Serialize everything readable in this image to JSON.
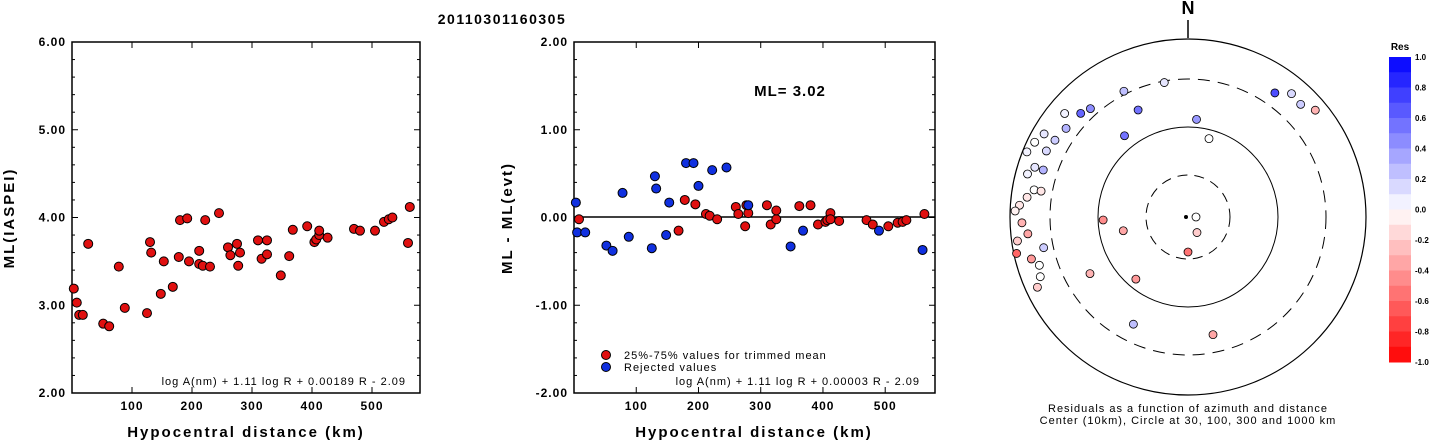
{
  "title": "20110301160305",
  "chart_data": [
    {
      "type": "scatter",
      "xlabel": "Hypocentral distance (km)",
      "ylabel": "ML(IASPEI)",
      "xlim": [
        0,
        580
      ],
      "ylim": [
        2.0,
        6.0
      ],
      "xticks": [
        "100",
        "200",
        "300",
        "400",
        "500"
      ],
      "yticks": [
        "2.00",
        "3.00",
        "4.00",
        "5.00",
        "6.00"
      ],
      "formula": "log A(nm) + 1.11 log R + 0.00189 R - 2.09",
      "marker_color": "#e01010",
      "points": [
        [
          3,
          3.19
        ],
        [
          8,
          3.03
        ],
        [
          12,
          2.89
        ],
        [
          18,
          2.89
        ],
        [
          27,
          3.7
        ],
        [
          52,
          2.79
        ],
        [
          62,
          2.76
        ],
        [
          78,
          3.44
        ],
        [
          88,
          2.97
        ],
        [
          125,
          2.91
        ],
        [
          130,
          3.72
        ],
        [
          132,
          3.6
        ],
        [
          148,
          3.13
        ],
        [
          153,
          3.5
        ],
        [
          168,
          3.21
        ],
        [
          180,
          3.97
        ],
        [
          178,
          3.55
        ],
        [
          192,
          3.99
        ],
        [
          195,
          3.5
        ],
        [
          212,
          3.62
        ],
        [
          212,
          3.47
        ],
        [
          218,
          3.45
        ],
        [
          222,
          3.97
        ],
        [
          230,
          3.44
        ],
        [
          245,
          4.05
        ],
        [
          260,
          3.66
        ],
        [
          264,
          3.57
        ],
        [
          275,
          3.7
        ],
        [
          277,
          3.45
        ],
        [
          280,
          3.6
        ],
        [
          310,
          3.74
        ],
        [
          316,
          3.53
        ],
        [
          325,
          3.74
        ],
        [
          325,
          3.58
        ],
        [
          348,
          3.34
        ],
        [
          362,
          3.56
        ],
        [
          368,
          3.86
        ],
        [
          392,
          3.9
        ],
        [
          404,
          3.72
        ],
        [
          407,
          3.75
        ],
        [
          412,
          3.8
        ],
        [
          412,
          3.85
        ],
        [
          426,
          3.77
        ],
        [
          470,
          3.87
        ],
        [
          480,
          3.85
        ],
        [
          505,
          3.85
        ],
        [
          520,
          3.95
        ],
        [
          528,
          3.98
        ],
        [
          534,
          4.0
        ],
        [
          560,
          3.71
        ],
        [
          563,
          4.12
        ]
      ]
    },
    {
      "type": "scatter",
      "xlabel": "Hypocentral distance (km)",
      "ylabel": "ML - ML(evt)",
      "xlim": [
        0,
        580
      ],
      "ylim": [
        -2.0,
        2.0
      ],
      "xticks": [
        "100",
        "200",
        "300",
        "400",
        "500"
      ],
      "yticks": [
        "-2.00",
        "-1.00",
        "0.00",
        "1.00",
        "2.00"
      ],
      "annotation": "ML= 3.02",
      "formula": "log A(nm) + 1.11 log R + 0.00003 R - 2.09",
      "reference_line": 0.0,
      "legend": [
        {
          "label": "25%-75% values for trimmed mean",
          "color": "#e01010"
        },
        {
          "label": "Rejected values",
          "color": "#1030e0"
        }
      ],
      "legend_position": "bottom-left",
      "series": [
        {
          "name": "25%-75% values for trimmed mean",
          "color": "#e01010",
          "points": [
            [
              8,
              -0.02
            ],
            [
              168,
              -0.15
            ],
            [
              178,
              0.2
            ],
            [
              195,
              0.15
            ],
            [
              212,
              0.04
            ],
            [
              218,
              0.02
            ],
            [
              230,
              -0.02
            ],
            [
              260,
              0.12
            ],
            [
              264,
              0.04
            ],
            [
              275,
              -0.1
            ],
            [
              277,
              0.14
            ],
            [
              280,
              0.05
            ],
            [
              310,
              0.14
            ],
            [
              316,
              -0.08
            ],
            [
              325,
              -0.02
            ],
            [
              325,
              0.08
            ],
            [
              362,
              0.13
            ],
            [
              380,
              0.14
            ],
            [
              392,
              -0.08
            ],
            [
              404,
              -0.05
            ],
            [
              407,
              -0.03
            ],
            [
              412,
              0.05
            ],
            [
              412,
              -0.02
            ],
            [
              426,
              -0.04
            ],
            [
              470,
              -0.03
            ],
            [
              480,
              -0.08
            ],
            [
              505,
              -0.1
            ],
            [
              520,
              -0.06
            ],
            [
              528,
              -0.05
            ],
            [
              534,
              -0.03
            ],
            [
              563,
              0.04
            ]
          ]
        },
        {
          "name": "Rejected values",
          "color": "#1030e0",
          "points": [
            [
              3,
              0.17
            ],
            [
              5,
              -0.17
            ],
            [
              18,
              -0.17
            ],
            [
              52,
              -0.32
            ],
            [
              62,
              -0.38
            ],
            [
              78,
              0.28
            ],
            [
              88,
              -0.22
            ],
            [
              125,
              -0.35
            ],
            [
              130,
              0.47
            ],
            [
              132,
              0.33
            ],
            [
              148,
              -0.2
            ],
            [
              153,
              0.17
            ],
            [
              180,
              0.62
            ],
            [
              192,
              0.62
            ],
            [
              200,
              0.36
            ],
            [
              222,
              0.54
            ],
            [
              245,
              0.57
            ],
            [
              280,
              0.14
            ],
            [
              348,
              -0.33
            ],
            [
              368,
              -0.15
            ],
            [
              490,
              -0.15
            ],
            [
              560,
              -0.37
            ]
          ]
        }
      ]
    },
    {
      "type": "scatter",
      "subtype": "polar-residual-map",
      "north_label": "N",
      "caption": [
        "Residuals as a function of azimuth and distance",
        "Center (10km), Circle at 30, 100, 300 and 1000 km"
      ],
      "colorbar_title": "Res",
      "colorbar_ticks": [
        "1.0",
        "0.8",
        "0.6",
        "0.4",
        "0.2",
        "0.0",
        "-0.2",
        "-0.4",
        "-0.6",
        "-0.8",
        "-1.0"
      ],
      "colorbar_range": [
        -1.0,
        1.0
      ],
      "positive_color": "#0000ff",
      "negative_color": "#ff0000",
      "stations": [
        {
          "azimuth": 90,
          "distance": 10,
          "residual": 0.0
        },
        {
          "azimuth": 150,
          "distance": 16,
          "residual": -0.2
        },
        {
          "azimuth": 180,
          "distance": 25,
          "residual": -0.55
        },
        {
          "azimuth": 220,
          "distance": 80,
          "residual": -0.4
        },
        {
          "azimuth": 258,
          "distance": 55,
          "residual": -0.35
        },
        {
          "azimuth": 268,
          "distance": 88,
          "residual": -0.45
        },
        {
          "azimuth": 240,
          "distance": 170,
          "residual": -0.3
        },
        {
          "azimuth": 207,
          "distance": 200,
          "residual": 0.25
        },
        {
          "azimuth": 168,
          "distance": 200,
          "residual": -0.35
        },
        {
          "azimuth": 5,
          "distance": 120,
          "residual": 0.4
        },
        {
          "azimuth": 15,
          "distance": 80,
          "residual": 0.0
        },
        {
          "azimuth": 322,
          "distance": 135,
          "residual": 0.55
        },
        {
          "azimuth": 335,
          "distance": 190,
          "residual": 0.55
        },
        {
          "azimuth": 35,
          "distance": 450,
          "residual": 0.7
        },
        {
          "azimuth": 40,
          "distance": 600,
          "residual": 0.15
        },
        {
          "azimuth": 45,
          "distance": 570,
          "residual": 0.2
        },
        {
          "azimuth": 50,
          "distance": 700,
          "residual": -0.3
        },
        {
          "azimuth": 350,
          "distance": 290,
          "residual": 0.1
        },
        {
          "azimuth": 333,
          "distance": 330,
          "residual": 0.25
        },
        {
          "azimuth": 318,
          "distance": 380,
          "residual": 0.45
        },
        {
          "azimuth": 314,
          "distance": 420,
          "residual": 0.6
        },
        {
          "azimuth": 306,
          "distance": 440,
          "residual": 0.3
        },
        {
          "azimuth": 300,
          "distance": 480,
          "residual": 0.2
        },
        {
          "azimuth": 295,
          "distance": 520,
          "residual": 0.15
        },
        {
          "azimuth": 288,
          "distance": 600,
          "residual": 0.1
        },
        {
          "azimuth": 285,
          "distance": 700,
          "residual": 0.05
        },
        {
          "azimuth": 280,
          "distance": 520,
          "residual": 0.0
        },
        {
          "azimuth": 277,
          "distance": 620,
          "residual": -0.1
        },
        {
          "azimuth": 274,
          "distance": 760,
          "residual": -0.1
        },
        {
          "azimuth": 272,
          "distance": 860,
          "residual": -0.05
        },
        {
          "azimuth": 268,
          "distance": 700,
          "residual": -0.3
        },
        {
          "azimuth": 264,
          "distance": 600,
          "residual": -0.35
        },
        {
          "azimuth": 262,
          "distance": 840,
          "residual": -0.2
        },
        {
          "azimuth": 258,
          "distance": 920,
          "residual": -0.6
        },
        {
          "azimuth": 255,
          "distance": 620,
          "residual": -0.4
        },
        {
          "azimuth": 258,
          "distance": 400,
          "residual": 0.2
        },
        {
          "azimuth": 252,
          "distance": 520,
          "residual": 0.0
        },
        {
          "azimuth": 248,
          "distance": 570,
          "residual": 0.0
        },
        {
          "azimuth": 245,
          "distance": 700,
          "residual": -0.2
        },
        {
          "azimuth": 300,
          "distance": 700,
          "residual": 0.1
        },
        {
          "azimuth": 296,
          "distance": 800,
          "residual": 0.0
        },
        {
          "azimuth": 292,
          "distance": 880,
          "residual": 0.05
        },
        {
          "azimuth": 310,
          "distance": 600,
          "residual": 0.05
        },
        {
          "azimuth": 288,
          "distance": 460,
          "residual": 0.3
        },
        {
          "azimuth": 280,
          "distance": 420,
          "residual": -0.1
        }
      ]
    }
  ]
}
